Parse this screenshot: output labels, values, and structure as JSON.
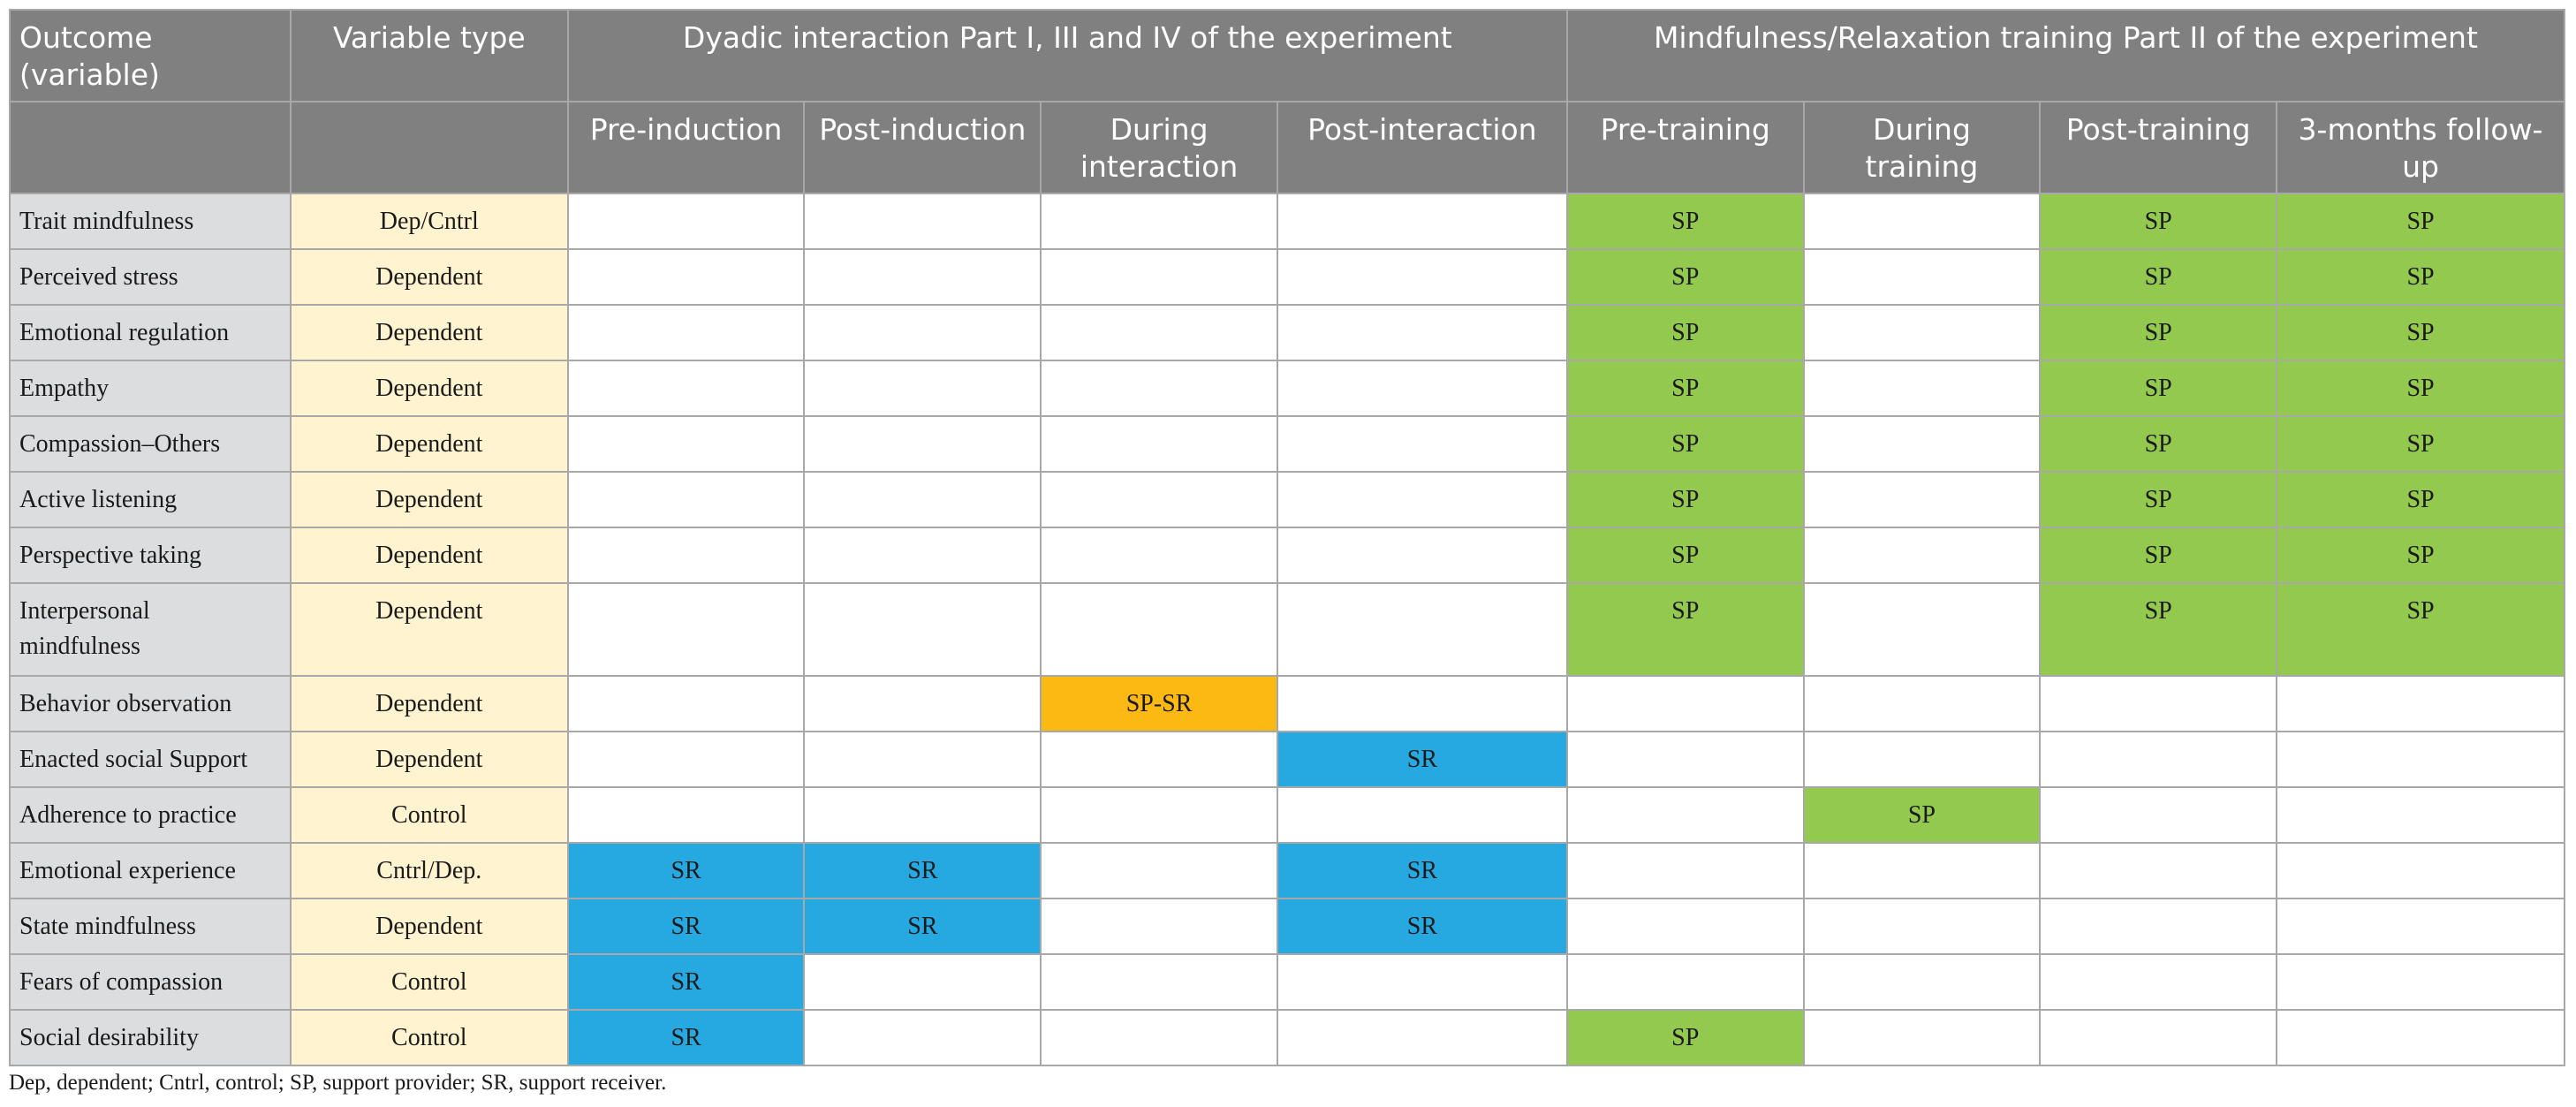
{
  "table": {
    "header": {
      "outcome": "Outcome (variable)",
      "variable_type": "Variable type",
      "group_dyadic": "Dyadic interaction Part I, III and IV of the experiment",
      "group_training": "Mindfulness/Relaxation training Part II of the experiment",
      "subcolumns": [
        "Pre-induction",
        "Post-induction",
        "During interaction",
        "Post-interaction",
        "Pre-training",
        "During training",
        "Post-training",
        "3-months follow-up"
      ]
    },
    "rows": [
      {
        "outcome": "Trait mindfulness",
        "type": "Dep/Cntrl",
        "cells": [
          "",
          "",
          "",
          "",
          "SP",
          "",
          "SP",
          "SP"
        ],
        "colors": [
          "white",
          "white",
          "white",
          "white",
          "green",
          "white",
          "green",
          "green"
        ]
      },
      {
        "outcome": "Perceived stress",
        "type": "Dependent",
        "cells": [
          "",
          "",
          "",
          "",
          "SP",
          "",
          "SP",
          "SP"
        ],
        "colors": [
          "white",
          "white",
          "white",
          "white",
          "green",
          "white",
          "green",
          "green"
        ]
      },
      {
        "outcome": "Emotional regulation",
        "type": "Dependent",
        "cells": [
          "",
          "",
          "",
          "",
          "SP",
          "",
          "SP",
          "SP"
        ],
        "colors": [
          "white",
          "white",
          "white",
          "white",
          "green",
          "white",
          "green",
          "green"
        ]
      },
      {
        "outcome": "Empathy",
        "type": "Dependent",
        "cells": [
          "",
          "",
          "",
          "",
          "SP",
          "",
          "SP",
          "SP"
        ],
        "colors": [
          "white",
          "white",
          "white",
          "white",
          "green",
          "white",
          "green",
          "green"
        ]
      },
      {
        "outcome": "Compassion–Others",
        "type": "Dependent",
        "cells": [
          "",
          "",
          "",
          "",
          "SP",
          "",
          "SP",
          "SP"
        ],
        "colors": [
          "white",
          "white",
          "white",
          "white",
          "green",
          "white",
          "green",
          "green"
        ]
      },
      {
        "outcome": "Active listening",
        "type": "Dependent",
        "cells": [
          "",
          "",
          "",
          "",
          "SP",
          "",
          "SP",
          "SP"
        ],
        "colors": [
          "white",
          "white",
          "white",
          "white",
          "green",
          "white",
          "green",
          "green"
        ]
      },
      {
        "outcome": "Perspective taking",
        "type": "Dependent",
        "cells": [
          "",
          "",
          "",
          "",
          "SP",
          "",
          "SP",
          "SP"
        ],
        "colors": [
          "white",
          "white",
          "white",
          "white",
          "green",
          "white",
          "green",
          "green"
        ]
      },
      {
        "outcome": "Interpersonal mindfulness",
        "type": "Dependent",
        "cells": [
          "",
          "",
          "",
          "",
          "SP",
          "",
          "SP",
          "SP"
        ],
        "colors": [
          "white",
          "white",
          "white",
          "white",
          "green",
          "white",
          "green",
          "green"
        ]
      },
      {
        "outcome": "Behavior observation",
        "type": "Dependent",
        "cells": [
          "",
          "",
          "SP-SR",
          "",
          "",
          "",
          "",
          ""
        ],
        "colors": [
          "white",
          "white",
          "orange",
          "white",
          "white",
          "white",
          "white",
          "white"
        ]
      },
      {
        "outcome": "Enacted social Support",
        "type": "Dependent",
        "cells": [
          "",
          "",
          "",
          "SR",
          "",
          "",
          "",
          ""
        ],
        "colors": [
          "white",
          "white",
          "white",
          "blue",
          "white",
          "white",
          "white",
          "white"
        ]
      },
      {
        "outcome": "Adherence to practice",
        "type": "Control",
        "cells": [
          "",
          "",
          "",
          "",
          "",
          "SP",
          "",
          ""
        ],
        "colors": [
          "white",
          "white",
          "white",
          "white",
          "white",
          "green",
          "white",
          "white"
        ]
      },
      {
        "outcome": "Emotional experience",
        "type": "Cntrl/Dep.",
        "cells": [
          "SR",
          "SR",
          "",
          "SR",
          "",
          "",
          "",
          ""
        ],
        "colors": [
          "blue",
          "blue",
          "white",
          "blue",
          "white",
          "white",
          "white",
          "white"
        ]
      },
      {
        "outcome": "State mindfulness",
        "type": "Dependent",
        "cells": [
          "SR",
          "SR",
          "",
          "SR",
          "",
          "",
          "",
          ""
        ],
        "colors": [
          "blue",
          "blue",
          "white",
          "blue",
          "white",
          "white",
          "white",
          "white"
        ]
      },
      {
        "outcome": "Fears of compassion",
        "type": "Control",
        "cells": [
          "SR",
          "",
          "",
          "",
          "",
          "",
          "",
          ""
        ],
        "colors": [
          "blue",
          "white",
          "white",
          "white",
          "white",
          "white",
          "white",
          "white"
        ]
      },
      {
        "outcome": "Social desirability",
        "type": "Control",
        "cells": [
          "SR",
          "",
          "",
          "",
          "SP",
          "",
          "",
          ""
        ],
        "colors": [
          "blue",
          "white",
          "white",
          "white",
          "green",
          "white",
          "white",
          "white"
        ]
      }
    ]
  },
  "footnote": "Dep, dependent; Cntrl, control; SP, support provider; SR, support receiver.",
  "colors": {
    "header_bg": "#808080",
    "outcome_bg": "#dcdddf",
    "vartype_bg": "#fff4cf",
    "green": "#93c94e",
    "blue": "#26a9e1",
    "orange": "#fdb913",
    "border": "#a8a8a8"
  }
}
